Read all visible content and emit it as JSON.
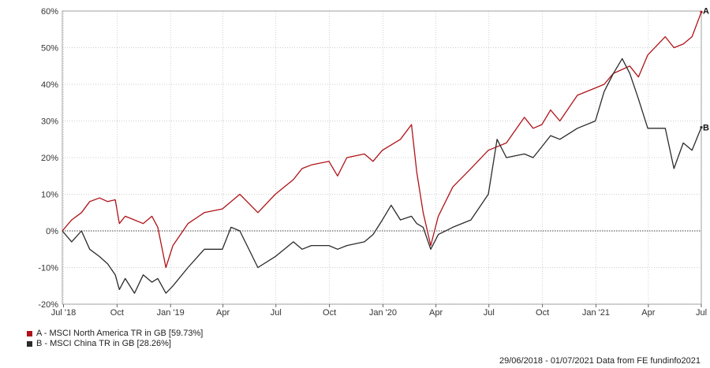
{
  "chart_data": {
    "type": "line",
    "xlim": [
      "2018-06-29",
      "2021-07-01"
    ],
    "ylim": [
      -20,
      60
    ],
    "y_unit": "%",
    "y_ticks": [
      60,
      50,
      40,
      30,
      20,
      10,
      0,
      -10,
      -20
    ],
    "y_tick_labels": [
      "60%",
      "50%",
      "40%",
      "30%",
      "20%",
      "10%",
      "0%",
      "-10%",
      "-20%"
    ],
    "x_ticks": [
      "2018-07-01",
      "2018-10-01",
      "2019-01-01",
      "2019-04-01",
      "2019-07-01",
      "2019-10-01",
      "2020-01-01",
      "2020-04-01",
      "2020-07-01",
      "2020-10-01",
      "2021-01-01",
      "2021-04-01",
      "2021-07-01"
    ],
    "x_tick_labels": [
      "Jul '18",
      "Oct",
      "Jan '19",
      "Apr",
      "Jul",
      "Oct",
      "Jan '20",
      "Apr",
      "Jul",
      "Oct",
      "Jan '21",
      "Apr",
      "Jul"
    ],
    "grid": true,
    "series": [
      {
        "name": "A - MSCI North America TR in GB [59.73%]",
        "end_label": "A",
        "color": "#b01217",
        "points": [
          [
            "2018-06-29",
            0
          ],
          [
            "2018-07-15",
            3
          ],
          [
            "2018-08-01",
            5
          ],
          [
            "2018-08-15",
            8
          ],
          [
            "2018-09-01",
            9
          ],
          [
            "2018-09-15",
            8
          ],
          [
            "2018-09-28",
            8.5
          ],
          [
            "2018-10-05",
            2
          ],
          [
            "2018-10-15",
            4
          ],
          [
            "2018-10-31",
            3
          ],
          [
            "2018-11-15",
            2
          ],
          [
            "2018-11-30",
            4
          ],
          [
            "2018-12-10",
            1
          ],
          [
            "2018-12-24",
            -10
          ],
          [
            "2019-01-05",
            -4
          ],
          [
            "2019-01-31",
            2
          ],
          [
            "2019-02-28",
            5
          ],
          [
            "2019-03-31",
            6
          ],
          [
            "2019-04-30",
            10
          ],
          [
            "2019-05-31",
            5
          ],
          [
            "2019-06-30",
            10
          ],
          [
            "2019-07-31",
            14
          ],
          [
            "2019-08-15",
            17
          ],
          [
            "2019-08-31",
            18
          ],
          [
            "2019-09-30",
            19
          ],
          [
            "2019-10-15",
            15
          ],
          [
            "2019-10-31",
            20
          ],
          [
            "2019-11-30",
            21
          ],
          [
            "2019-12-15",
            19
          ],
          [
            "2019-12-31",
            22
          ],
          [
            "2020-01-31",
            25
          ],
          [
            "2020-02-19",
            29
          ],
          [
            "2020-02-28",
            16
          ],
          [
            "2020-03-10",
            5
          ],
          [
            "2020-03-23",
            -4
          ],
          [
            "2020-04-05",
            4
          ],
          [
            "2020-04-30",
            12
          ],
          [
            "2020-05-31",
            17
          ],
          [
            "2020-06-30",
            22
          ],
          [
            "2020-07-31",
            24
          ],
          [
            "2020-08-31",
            31
          ],
          [
            "2020-09-15",
            28
          ],
          [
            "2020-09-30",
            29
          ],
          [
            "2020-10-15",
            33
          ],
          [
            "2020-10-31",
            30
          ],
          [
            "2020-11-30",
            37
          ],
          [
            "2020-12-31",
            39
          ],
          [
            "2021-01-15",
            40
          ],
          [
            "2021-01-31",
            43
          ],
          [
            "2021-02-28",
            45
          ],
          [
            "2021-03-15",
            42
          ],
          [
            "2021-03-31",
            48
          ],
          [
            "2021-04-30",
            53
          ],
          [
            "2021-05-15",
            50
          ],
          [
            "2021-05-31",
            51
          ],
          [
            "2021-06-15",
            53
          ],
          [
            "2021-07-01",
            59.73
          ]
        ]
      },
      {
        "name": "B - MSCI China TR in GB [28.26%]",
        "end_label": "B",
        "color": "#2b2b2b",
        "points": [
          [
            "2018-06-29",
            0
          ],
          [
            "2018-07-15",
            -3
          ],
          [
            "2018-08-01",
            0
          ],
          [
            "2018-08-15",
            -5
          ],
          [
            "2018-09-01",
            -7
          ],
          [
            "2018-09-15",
            -9
          ],
          [
            "2018-09-28",
            -12
          ],
          [
            "2018-10-05",
            -16
          ],
          [
            "2018-10-15",
            -13
          ],
          [
            "2018-10-31",
            -17
          ],
          [
            "2018-11-15",
            -12
          ],
          [
            "2018-11-30",
            -14
          ],
          [
            "2018-12-10",
            -13
          ],
          [
            "2018-12-24",
            -17
          ],
          [
            "2019-01-05",
            -15
          ],
          [
            "2019-01-31",
            -10
          ],
          [
            "2019-02-28",
            -5
          ],
          [
            "2019-03-31",
            -5
          ],
          [
            "2019-04-15",
            1
          ],
          [
            "2019-04-30",
            0
          ],
          [
            "2019-05-31",
            -10
          ],
          [
            "2019-06-30",
            -7
          ],
          [
            "2019-07-31",
            -3
          ],
          [
            "2019-08-15",
            -5
          ],
          [
            "2019-08-31",
            -4
          ],
          [
            "2019-09-30",
            -4
          ],
          [
            "2019-10-15",
            -5
          ],
          [
            "2019-10-31",
            -4
          ],
          [
            "2019-11-30",
            -3
          ],
          [
            "2019-12-15",
            -1
          ],
          [
            "2019-12-31",
            3
          ],
          [
            "2020-01-15",
            7
          ],
          [
            "2020-01-31",
            3
          ],
          [
            "2020-02-19",
            4
          ],
          [
            "2020-02-28",
            2
          ],
          [
            "2020-03-10",
            1
          ],
          [
            "2020-03-23",
            -5
          ],
          [
            "2020-04-05",
            -1
          ],
          [
            "2020-04-30",
            1
          ],
          [
            "2020-05-31",
            3
          ],
          [
            "2020-06-30",
            10
          ],
          [
            "2020-07-15",
            25
          ],
          [
            "2020-07-31",
            20
          ],
          [
            "2020-08-31",
            21
          ],
          [
            "2020-09-15",
            20
          ],
          [
            "2020-09-30",
            23
          ],
          [
            "2020-10-15",
            26
          ],
          [
            "2020-10-31",
            25
          ],
          [
            "2020-11-30",
            28
          ],
          [
            "2020-12-31",
            30
          ],
          [
            "2021-01-15",
            38
          ],
          [
            "2021-01-31",
            43
          ],
          [
            "2021-02-15",
            47
          ],
          [
            "2021-02-28",
            43
          ],
          [
            "2021-03-15",
            36
          ],
          [
            "2021-03-31",
            28
          ],
          [
            "2021-04-30",
            28
          ],
          [
            "2021-05-15",
            17
          ],
          [
            "2021-05-31",
            24
          ],
          [
            "2021-06-15",
            22
          ],
          [
            "2021-07-01",
            28.26
          ]
        ]
      }
    ]
  },
  "footer": "29/06/2018 - 01/07/2021 Data from FE fundinfo2021"
}
